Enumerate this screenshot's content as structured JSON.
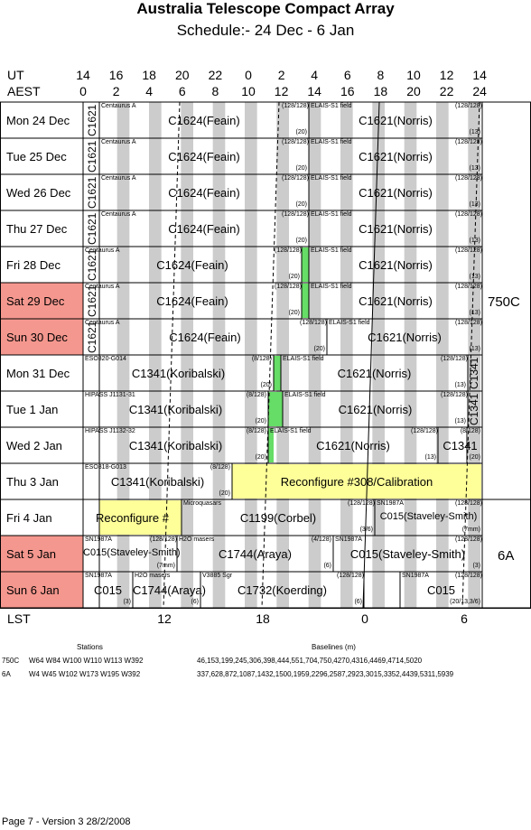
{
  "title": "Australia Telescope Compact Array",
  "subtitle": "Schedule:- 24 Dec - 6  Jan",
  "header": {
    "ut_label": "UT",
    "aest_label": "AEST",
    "ut_hours": [
      "14",
      "16",
      "18",
      "20",
      "22",
      "0",
      "2",
      "4",
      "6",
      "8",
      "10",
      "12",
      "14"
    ],
    "aest_hours": [
      "0",
      "2",
      "4",
      "6",
      "8",
      "10",
      "12",
      "14",
      "16",
      "18",
      "20",
      "22",
      "24"
    ]
  },
  "lst": {
    "label": "LST",
    "ticks": [
      "12",
      "18",
      "0",
      "6"
    ]
  },
  "configs": {
    "first": "750C",
    "second": "6A"
  },
  "days": [
    {
      "label": "Mon  24 Dec",
      "weekend": false
    },
    {
      "label": "Tue   25 Dec",
      "weekend": false
    },
    {
      "label": "Wed  26 Dec",
      "weekend": false
    },
    {
      "label": "Thu   27 Dec",
      "weekend": false
    },
    {
      "label": "Fri    28 Dec",
      "weekend": false
    },
    {
      "label": "Sat   29 Dec",
      "weekend": true
    },
    {
      "label": "Sun   30 Dec",
      "weekend": true
    },
    {
      "label": "Mon  31 Dec",
      "weekend": false
    },
    {
      "label": "Tue    1  Jan",
      "weekend": false
    },
    {
      "label": "Wed   2  Jan",
      "weekend": false
    },
    {
      "label": "Thu    3  Jan",
      "weekend": false
    },
    {
      "label": "Fri     4  Jan",
      "weekend": false
    },
    {
      "label": "Sat     5  Jan",
      "weekend": true
    },
    {
      "label": "Sun    6  Jan",
      "weekend": true
    }
  ],
  "vertical_labels": [
    "C1621",
    "C1621",
    "C1621",
    "C1621",
    "C1621",
    "C1621",
    "C1621",
    "C1341",
    "C1341"
  ],
  "rows": [
    {
      "cells": [
        {
          "top": "Centaurus A",
          "main": "C1624(Feain)"
        },
        {
          "tr": "(128/128)",
          "br": "(20)"
        },
        {
          "top": "ELAIS-S1 field",
          "main": "C1621(Norris)",
          "tr": "(128/128)",
          "br": "(13)"
        }
      ]
    },
    {
      "cells": [
        {
          "top": "Centaurus A",
          "main": "C1624(Feain)"
        },
        {
          "tr": "(128/128)",
          "br": "(20)"
        },
        {
          "top": "ELAIS-S1 field",
          "main": "C1621(Norris)",
          "tr": "(128/128)",
          "br": "(13)"
        }
      ]
    },
    {
      "cells": [
        {
          "top": "Centaurus A",
          "main": "C1624(Feain)"
        },
        {
          "tr": "(128/128)",
          "br": "(20)"
        },
        {
          "top": "ELAIS-S1 field",
          "main": "C1621(Norris)",
          "tr": "(128/128)",
          "br": "(13)"
        }
      ]
    },
    {
      "cells": [
        {
          "top": "Centaurus A",
          "main": "C1624(Feain)"
        },
        {
          "tr": "(128/128)",
          "br": "(20)"
        },
        {
          "top": "ELAIS-S1 field",
          "main": "C1621(Norris)",
          "tr": "(128/128)",
          "br": "(13)"
        }
      ]
    },
    {
      "cells": [
        {
          "top": "Centaurus A",
          "main": "C1624(Feain)",
          "tr": "(128/128)",
          "br": "(20)"
        },
        {
          "top": "ELAIS-S1 field",
          "main": "C1621(Norris)",
          "tr": "(128/128)",
          "br": "(13)"
        }
      ]
    },
    {
      "cells": [
        {
          "top": "Centaurus A",
          "main": "C1624(Feain)",
          "tr": "(128/128)",
          "br": "(20)"
        },
        {
          "top": "ELAIS-S1 field",
          "main": "C1621(Norris)",
          "tr": "(128/128)",
          "br": "(13)"
        }
      ]
    },
    {
      "cells": [
        {
          "top": "Centaurus A",
          "main": "C1624(Feain)",
          "tr": "(128/128)",
          "br": "(20)"
        },
        {
          "top": "ELAIS-S1 field",
          "main": "C1621(Norris)",
          "tr": "(128/128)",
          "br": "(13)"
        }
      ]
    },
    {
      "cells": [
        {
          "top": "ESO320-G014",
          "main": "C1341(Koribalski)",
          "tr": "(8/128)",
          "br": "(20)"
        },
        {
          "top": "ELAIS-S1 field",
          "main": "C1621(Norris)",
          "tr": "(128/128)",
          "br": "(13)"
        }
      ]
    },
    {
      "cells": [
        {
          "top": "HIPASS J1131-31",
          "main": "C1341(Koribalski)",
          "tr": "(8/128)",
          "br": "(20)"
        },
        {
          "top": "ELAIS-S1 field",
          "main": "C1621(Norris)",
          "tr": "(128/128)",
          "br": "(13)"
        }
      ]
    },
    {
      "cells": [
        {
          "top": "HIPASS J1132-32",
          "main": "C1341(Koribalski)",
          "tr": "(8/128)",
          "br": "(20)"
        },
        {
          "top": "ELAIS-S1 field",
          "main": "C1621(Norris)",
          "tr": "(128/128)",
          "br": "(13)"
        },
        {
          "main": "C1341",
          "tr": "(8/128)",
          "br": "(20)"
        }
      ]
    },
    {
      "cells": [
        {
          "top": "ESO318-G013",
          "main": "C1341(Koribalski)",
          "tr": "(8/128)",
          "br": "(20)"
        },
        {
          "main": "Reconfigure #308/Calibration"
        }
      ]
    },
    {
      "cells": [
        {
          "main": "Reconfigure #"
        },
        {
          "top": "Microquasars",
          "main": "C1199(Corbel)",
          "tr": "(128/128)",
          "br": "(3/6)"
        },
        {
          "top": "SN1987A",
          "main": "C015(Staveley-Smith)",
          "tr": "(128/128)",
          "br": "(7mm)"
        }
      ]
    },
    {
      "cells": [
        {
          "top": "SN1987A",
          "main": "C015(Staveley-Smith)",
          "tr": "(128/128)",
          "br": "(7mm)"
        },
        {
          "top": "H2O masers",
          "main": "C1744(Araya)",
          "tr": "(4/128)",
          "br": "(6)"
        },
        {
          "top": "SN1987A",
          "main": "C015(Staveley-Smith)",
          "tr": "(128/128)",
          "br": "(3)"
        }
      ]
    },
    {
      "cells": [
        {
          "top": "SN1987A",
          "main": "C015",
          "br": "(3)"
        },
        {
          "top": "H2O masers",
          "main": "C1744(Araya)",
          "br": "(6)"
        },
        {
          "top": "V3885 Sgr",
          "main": "C1732(Koerding)",
          "tr": "(128/128)",
          "br": "(6)"
        },
        {
          "top": "SN1987A",
          "main": "C015",
          "tr": "(128/128)",
          "br": "(20/13,3/6)"
        }
      ]
    }
  ],
  "footer": {
    "stations_header": "Stations",
    "baselines_header": "Baselines (m)",
    "c750_label": "750C",
    "c750_stations": "W64 W84 W100 W110 W113 W392",
    "c750_baselines": "46,153,199,245,306,398,444,551,704,750,4270,4316,4469,4714,5020",
    "c6a_label": "6A",
    "c6a_stations": "W4 W45 W102 W173 W195 W392",
    "c6a_baselines": "337,628,872,1087,1432,1500,1959,2296,2587,2923,3015,3352,4439,5311,5939",
    "page": "Page 7 - Version 3  28/2/2008"
  },
  "colors": {
    "weekend": "#f4978e",
    "stripe": "#cccccc",
    "yellow": "#ffff99",
    "green": "#66dd66"
  }
}
